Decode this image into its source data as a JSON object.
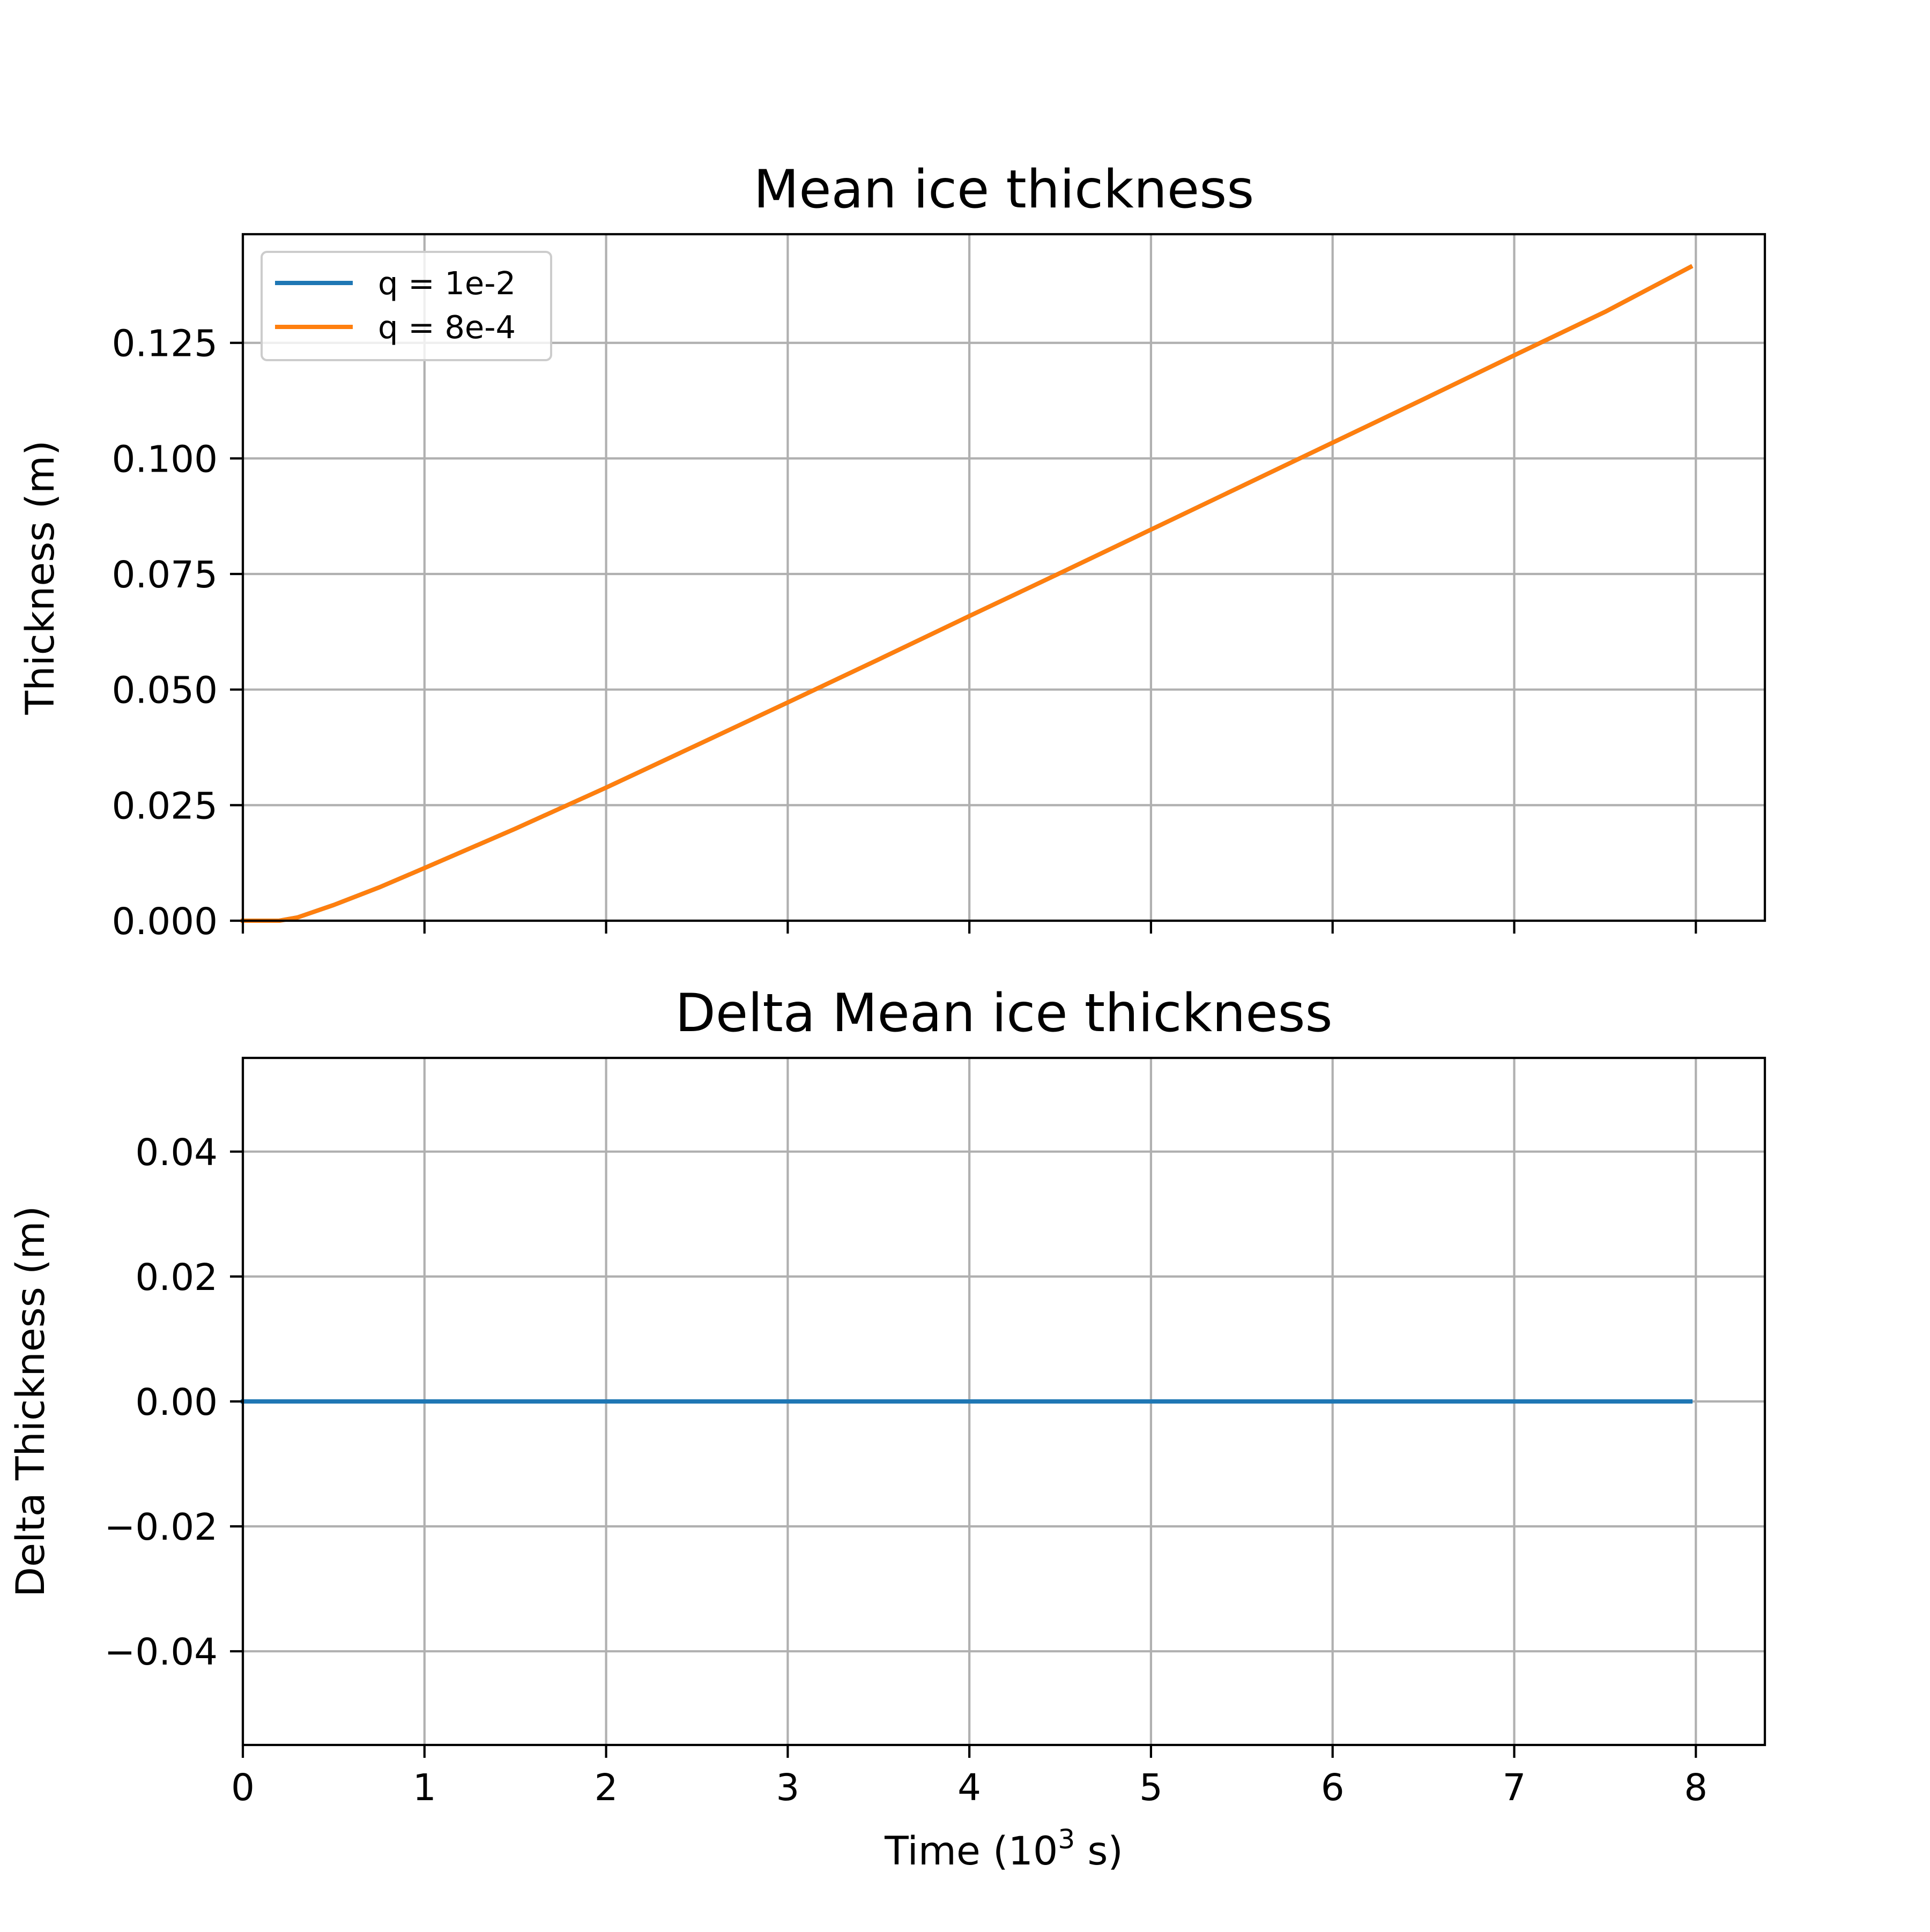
{
  "chart_data": [
    {
      "type": "line",
      "title": "Mean ice thickness",
      "xlabel": "",
      "ylabel": "Thickness (m)",
      "xlim": [
        0,
        8.38
      ],
      "ylim": [
        0,
        0.1485
      ],
      "xticks": [
        0,
        1,
        2,
        3,
        4,
        5,
        6,
        7,
        8
      ],
      "yticks": [
        0.0,
        0.025,
        0.05,
        0.075,
        0.1,
        0.125
      ],
      "ytick_labels": [
        "0.000",
        "0.025",
        "0.050",
        "0.075",
        "0.100",
        "0.125"
      ],
      "grid": true,
      "legend": {
        "placement": "top-left",
        "entries": [
          {
            "label": "q = 1e-2",
            "color": "#1f77b4"
          },
          {
            "label": "q = 8e-4",
            "color": "#ff7f0e"
          }
        ]
      },
      "series": [
        {
          "name": "q = 1e-2",
          "color": "#1f77b4",
          "x": [
            0,
            0.2,
            0.3,
            0.5,
            0.75,
            1.0,
            1.5,
            2.0,
            2.5,
            3.0,
            3.5,
            4.0,
            4.5,
            5.0,
            5.5,
            6.0,
            6.5,
            7.0,
            7.5,
            7.97
          ],
          "y": [
            0,
            0,
            0.0007,
            0.0034,
            0.0072,
            0.0114,
            0.0199,
            0.0288,
            0.038,
            0.0472,
            0.0565,
            0.0659,
            0.0752,
            0.0846,
            0.094,
            0.1034,
            0.1128,
            0.1223,
            0.1317,
            0.1414
          ]
        },
        {
          "name": "q = 8e-4",
          "color": "#ff7f0e",
          "x": [
            0,
            0.2,
            0.3,
            0.5,
            0.75,
            1.0,
            1.5,
            2.0,
            2.5,
            3.0,
            3.5,
            4.0,
            4.5,
            5.0,
            5.5,
            6.0,
            6.5,
            7.0,
            7.5,
            7.97
          ],
          "y": [
            0,
            0,
            0.0007,
            0.0034,
            0.0072,
            0.0114,
            0.0199,
            0.0288,
            0.038,
            0.0472,
            0.0565,
            0.0659,
            0.0752,
            0.0846,
            0.094,
            0.1034,
            0.1128,
            0.1223,
            0.1317,
            0.1414
          ]
        }
      ]
    },
    {
      "type": "line",
      "title": "Delta Mean ice thickness",
      "xlabel_prefix": "Time (10",
      "xlabel_sup": "3",
      "xlabel_suffix": " s)",
      "ylabel": "Delta Thickness (m)",
      "xlim": [
        0,
        8.38
      ],
      "ylim": [
        -0.055,
        0.055
      ],
      "xticks": [
        0,
        1,
        2,
        3,
        4,
        5,
        6,
        7,
        8
      ],
      "xtick_labels": [
        "0",
        "1",
        "2",
        "3",
        "4",
        "5",
        "6",
        "7",
        "8"
      ],
      "yticks": [
        -0.04,
        -0.02,
        0.0,
        0.02,
        0.04
      ],
      "ytick_labels": [
        "−0.04",
        "−0.02",
        "0.00",
        "0.02",
        "0.04"
      ],
      "grid": true,
      "series": [
        {
          "color": "#1f77b4",
          "x": [
            0,
            7.97
          ],
          "y": [
            0,
            0
          ]
        }
      ]
    }
  ]
}
